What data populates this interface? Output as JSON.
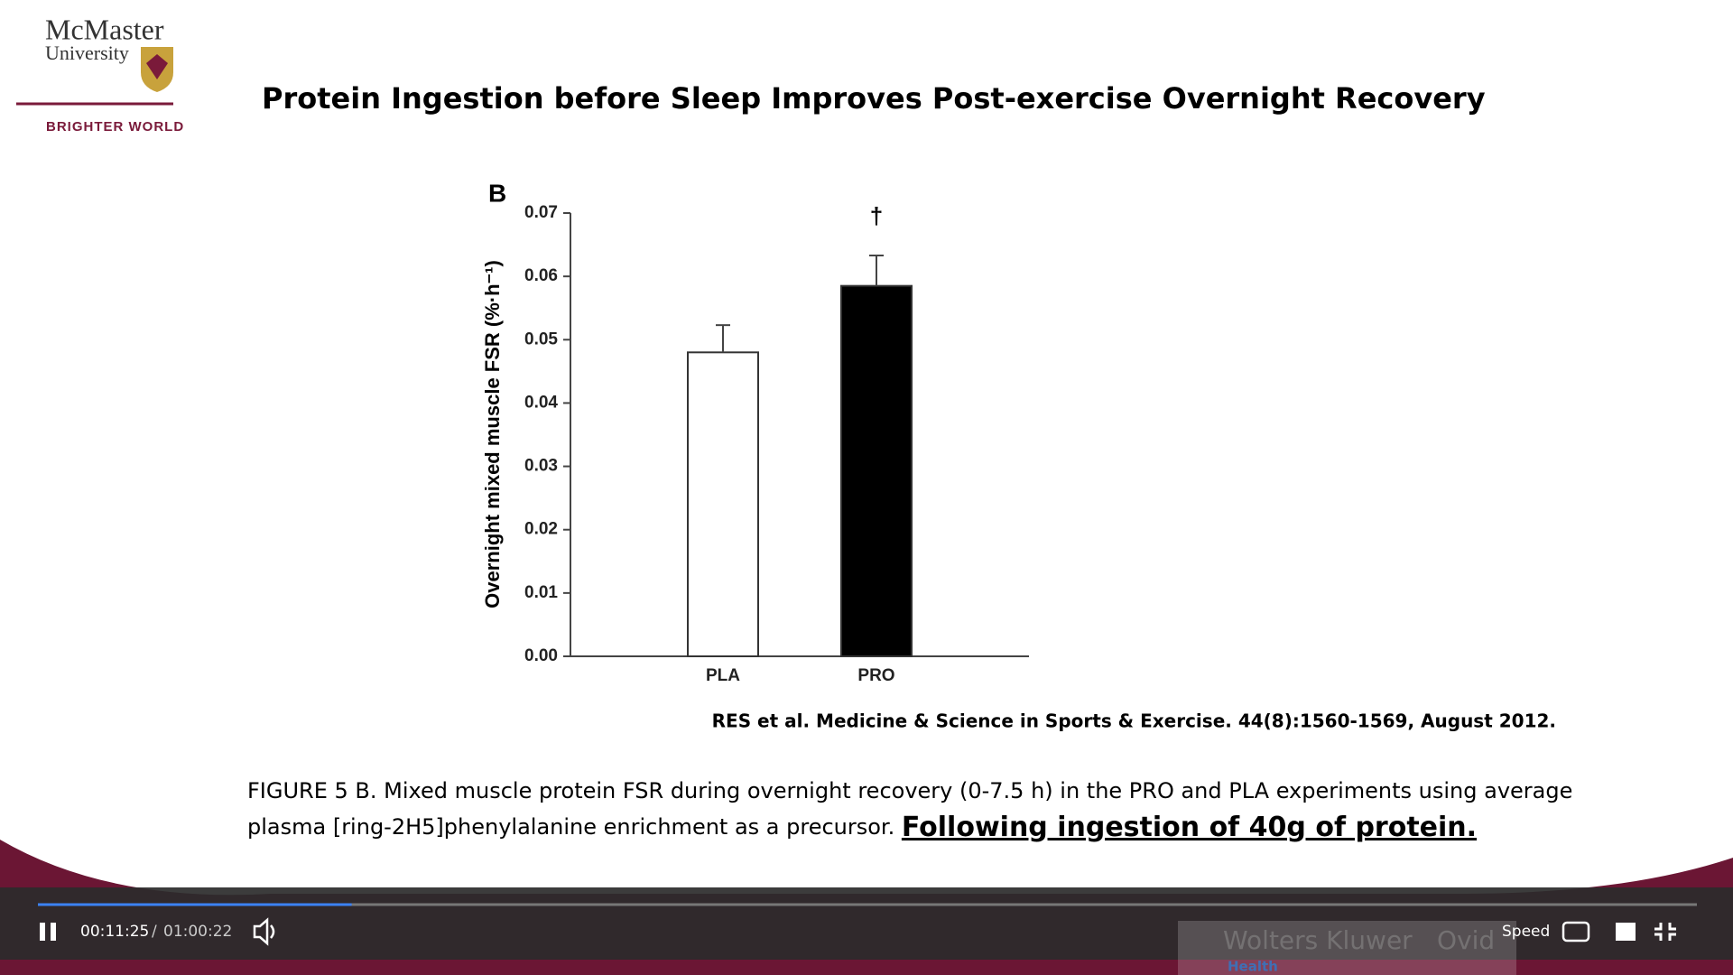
{
  "header": {
    "logo_name": "McMaster",
    "logo_sub": "University",
    "tagline": "BRIGHTER WORLD"
  },
  "slide": {
    "title": "Protein Ingestion before Sleep Improves Post-exercise Overnight Recovery",
    "citation": "RES et al. Medicine & Science in Sports & Exercise. 44(8):1560-1569, August 2012.",
    "caption_line1": "FIGURE 5 B. Mixed muscle protein FSR during overnight recovery (0-7.5 h) in the PRO and PLA experiments using average",
    "caption_line2": "plasma [ring-2H5]phenylalanine enrichment as a precursor.",
    "caption_emphasis": "Following ingestion of 40g of protein."
  },
  "chart_data": {
    "type": "bar",
    "panel_label": "B",
    "y_label": "Overnight mixed muscle FSR (%·h⁻¹)",
    "categories": [
      "PLA",
      "PRO"
    ],
    "values": [
      0.048,
      0.0585
    ],
    "errors": [
      0.0043,
      0.0048
    ],
    "colors": [
      "#ffffff",
      "#000000"
    ],
    "annotation": "†",
    "ylim": [
      0,
      0.07
    ],
    "yticks": [
      {
        "value": 0,
        "label": "0.00"
      },
      0.01,
      0.02,
      0.03,
      0.04,
      0.05,
      0.06,
      0.07
    ]
  },
  "player": {
    "current_time": "00:11:25",
    "separator": "/",
    "duration": "01:00:22",
    "speed": "Speed",
    "watermark": "Wolters Kluwer",
    "watermark2": "Ovid",
    "watermark3": "Health"
  }
}
